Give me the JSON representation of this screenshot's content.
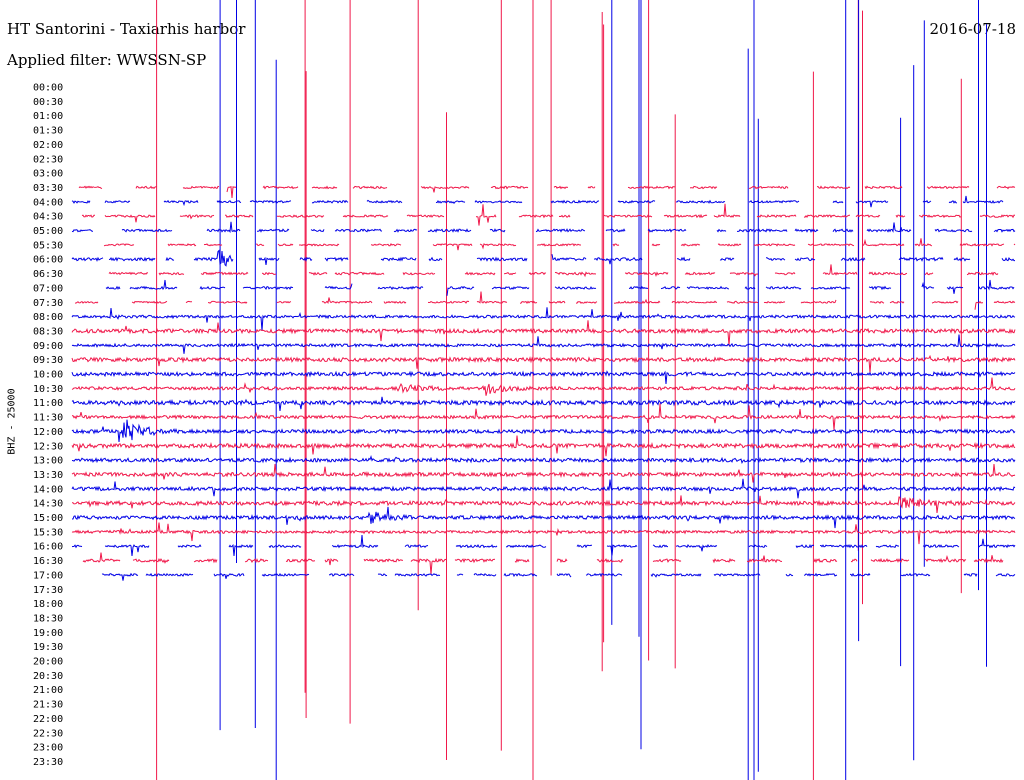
{
  "header": {
    "title": "HT Santorini - Taxiarhis harbor",
    "date": "2016-07-18",
    "filter": "Applied filter: WWSSN-SP"
  },
  "chart_data": {
    "type": "line",
    "title": "HT Santorini - Taxiarhis harbor",
    "ylabel": "BHZ - 25000",
    "row_labels": [
      "00:00",
      "00:30",
      "01:00",
      "01:30",
      "02:00",
      "02:30",
      "03:00",
      "03:30",
      "04:00",
      "04:30",
      "05:00",
      "05:30",
      "06:00",
      "06:30",
      "07:00",
      "07:30",
      "08:00",
      "08:30",
      "09:00",
      "09:30",
      "10:00",
      "10:30",
      "11:00",
      "11:30",
      "12:00",
      "12:30",
      "13:00",
      "13:30",
      "14:00",
      "14:30",
      "15:00",
      "15:30",
      "16:00",
      "16:30",
      "17:00",
      "17:30",
      "18:00",
      "18:30",
      "19:00",
      "19:30",
      "20:00",
      "20:30",
      "21:00",
      "21:30",
      "22:00",
      "22:30",
      "23:00",
      "23:30"
    ],
    "trace_colors": [
      "#0000e6",
      "#f0184a"
    ],
    "recorded_window": [
      "03:30",
      "17:00"
    ],
    "continuous_window": [
      "08:00",
      "15:30"
    ],
    "events": [
      {
        "row": "06:00",
        "time_fraction": 0.16,
        "amplitude": 0.6
      },
      {
        "row": "10:30",
        "time_fraction": 0.35,
        "amplitude": 0.45
      },
      {
        "row": "10:30",
        "time_fraction": 0.44,
        "amplitude": 0.5
      },
      {
        "row": "12:00",
        "time_fraction": 0.06,
        "amplitude": 0.9
      },
      {
        "row": "14:30",
        "time_fraction": 0.88,
        "amplitude": 0.5
      },
      {
        "row": "15:00",
        "time_fraction": 0.32,
        "amplitude": 0.4
      }
    ]
  }
}
